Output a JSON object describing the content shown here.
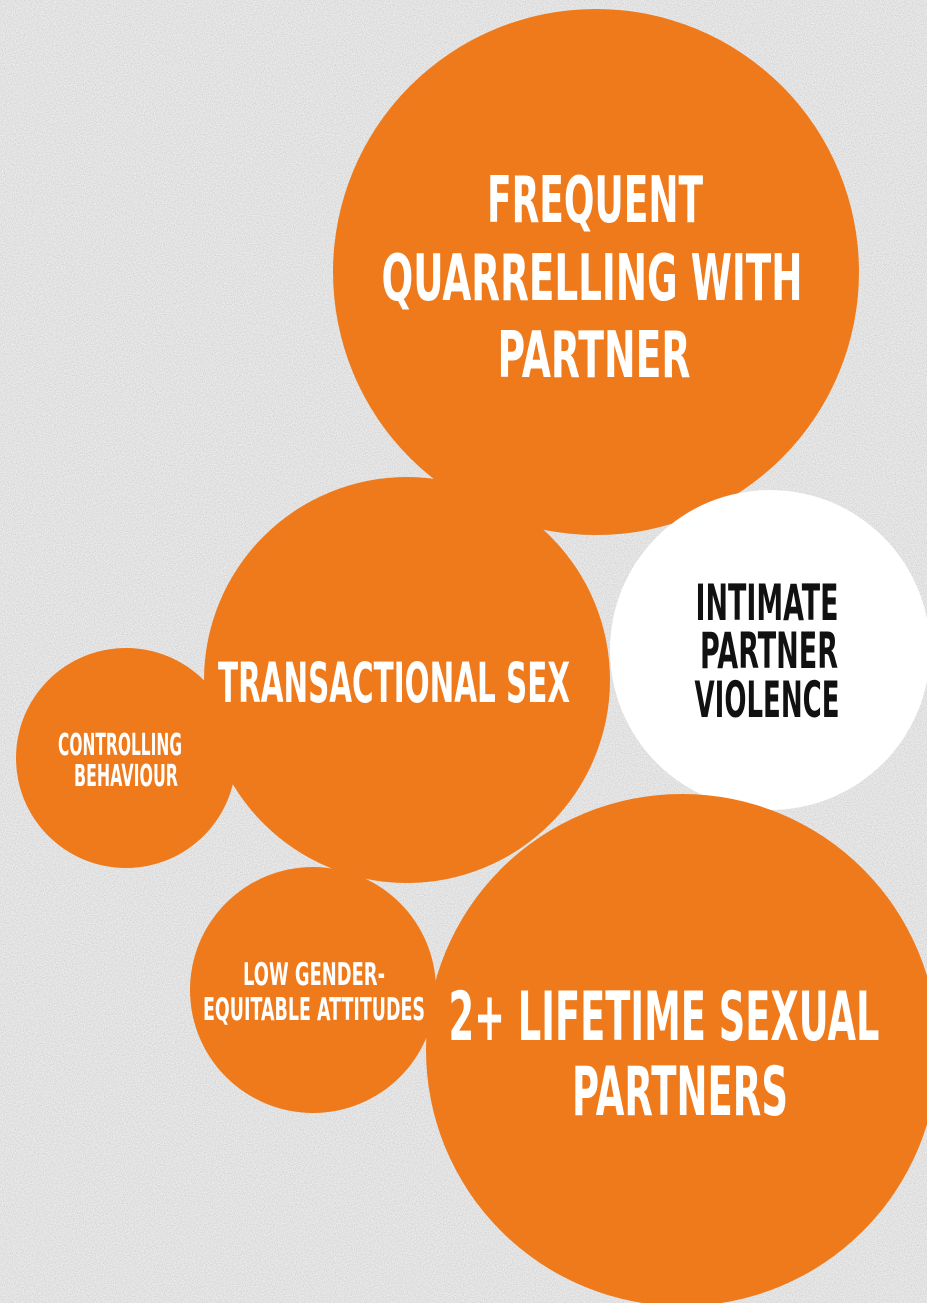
{
  "nodes": [
    {
      "label_lines": [
        "FREQUENT",
        "QUARRELLING WITH",
        "PARTNER"
      ]
    },
    {
      "label_lines": [
        "TRANSACTIONAL SEX"
      ]
    },
    {
      "label_lines": [
        "CONTROLLING",
        "BEHAVIOUR"
      ]
    },
    {
      "label_lines": [
        "INTIMATE",
        "PARTNER",
        "VIOLENCE"
      ]
    },
    {
      "label_lines": [
        "LOW GENDER-",
        "EQUITABLE ATTITUDES"
      ]
    },
    {
      "label_lines": [
        "2+ LIFETIME SEXUAL",
        "PARTNERS"
      ]
    }
  ]
}
